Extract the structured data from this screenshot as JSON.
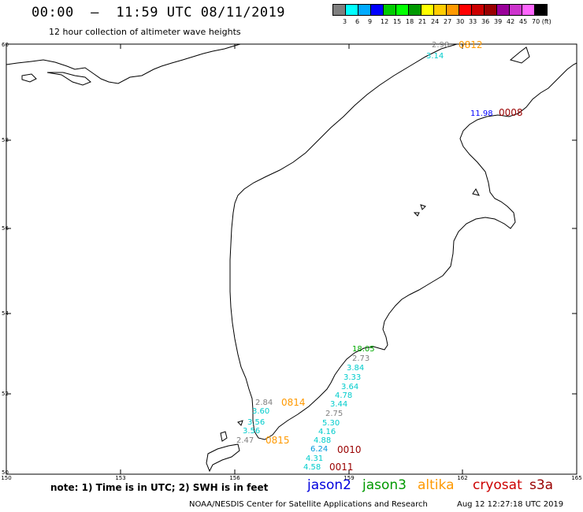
{
  "header": {
    "title": "00:00  —  11:59 UTC 08/11/2019",
    "subtitle": "12 hour collection of altimeter wave heights"
  },
  "color_scale": {
    "colors": [
      "#7f7f7f",
      "#00ffff",
      "#00aaff",
      "#0000ff",
      "#00cc00",
      "#00ff00",
      "#009900",
      "#ffff00",
      "#ffcc00",
      "#ff9900",
      "#ff0000",
      "#cc0000",
      "#990000",
      "#990099",
      "#cc33cc",
      "#ff66ff",
      "#000000"
    ],
    "labels": [
      "3",
      "6",
      "9",
      "12",
      "15",
      "18",
      "21",
      "24",
      "27",
      "30",
      "33",
      "36",
      "39",
      "42",
      "45",
      "70 (ft)"
    ]
  },
  "axes": {
    "x_labels": [
      "150",
      "153",
      "156",
      "159",
      "162",
      "165"
    ],
    "y_labels": [
      "60",
      "58",
      "56",
      "54",
      "52",
      "50"
    ]
  },
  "observations": [
    {
      "text": "2.98",
      "color": "#808080"
    },
    {
      "text": "3.14",
      "color": "#00cccc"
    },
    {
      "text": "11.98",
      "color": "#0000ff"
    },
    {
      "text": "18.05",
      "color": "#00aa00"
    },
    {
      "text": "2.73",
      "color": "#808080"
    },
    {
      "text": "3.84",
      "color": "#00cccc"
    },
    {
      "text": "3.33",
      "color": "#00cccc"
    },
    {
      "text": "3.64",
      "color": "#00cccc"
    },
    {
      "text": "4.78",
      "color": "#00cccc"
    },
    {
      "text": "3.44",
      "color": "#00cccc"
    },
    {
      "text": "2.75",
      "color": "#808080"
    },
    {
      "text": "5.30",
      "color": "#00cccc"
    },
    {
      "text": "4.16",
      "color": "#00cccc"
    },
    {
      "text": "4.88",
      "color": "#00cccc"
    },
    {
      "text": "6.24",
      "color": "#0099dd"
    },
    {
      "text": "4.31",
      "color": "#00cccc"
    },
    {
      "text": "4.58",
      "color": "#00cccc"
    },
    {
      "text": "2.84",
      "color": "#808080"
    },
    {
      "text": "3.60",
      "color": "#00cccc"
    },
    {
      "text": "3.56",
      "color": "#00cccc"
    },
    {
      "text": "3.56",
      "color": "#00cccc"
    },
    {
      "text": "2.47",
      "color": "#808080"
    }
  ],
  "pass_times": [
    {
      "text": "0812",
      "color": "#ff9900"
    },
    {
      "text": "0008",
      "color": "#990000"
    },
    {
      "text": "0814",
      "color": "#ff9900"
    },
    {
      "text": "0815",
      "color": "#ff9900"
    },
    {
      "text": "0010",
      "color": "#990000"
    },
    {
      "text": "0011",
      "color": "#990000"
    }
  ],
  "note": "note: 1) Time is in UTC; 2) SWH is in feet",
  "legend": [
    {
      "name": "jason2",
      "color": "#0000dd"
    },
    {
      "name": "jason3",
      "color": "#009900"
    },
    {
      "name": "altika",
      "color": "#ff9900"
    },
    {
      "name": "cryosat",
      "color": "#cc0000"
    },
    {
      "name": "s3a",
      "color": "#990000"
    }
  ],
  "footer": {
    "credit": "NOAA/NESDIS Center for Satellite Applications and Research",
    "generated": "Aug 12 12:27:18 UTC 2019"
  }
}
